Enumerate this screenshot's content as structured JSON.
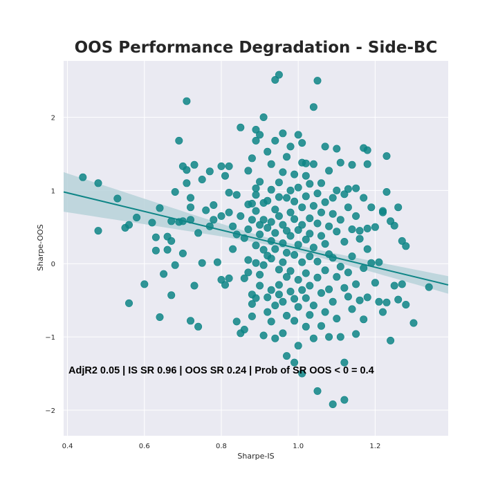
{
  "chart_data": {
    "type": "scatter",
    "title": "OOS Performance Degradation - Side-BC",
    "xlabel": "Sharpe-IS",
    "ylabel": "Sharpe-OOS",
    "xlim": [
      0.39,
      1.39
    ],
    "ylim": [
      -2.35,
      2.77
    ],
    "xticks": [
      0.4,
      0.6,
      0.8,
      1.0,
      1.2
    ],
    "xtick_labels": [
      "0.4",
      "0.6",
      "0.8",
      "1.0",
      "1.2"
    ],
    "yticks": [
      -2,
      -1,
      0,
      1,
      2
    ],
    "ytick_labels": [
      "−2",
      "−1",
      "0",
      "1",
      "2"
    ],
    "grid": true,
    "annotation": "AdjR2 0.05 | IS SR 0.96 | OOS SR 0.24 | Prob of SR OOS < 0 = 0.4",
    "colors": {
      "point": "#0e8586",
      "line": "#0e8586",
      "band": "#b7d2d9",
      "background": "#eaeaf2",
      "grid": "#ffffff"
    },
    "regression": {
      "x": [
        0.39,
        1.39
      ],
      "y": [
        0.98,
        -0.29
      ],
      "band_halfwidth": [
        0.27,
        0.12
      ]
    },
    "points": [
      [
        0.44,
        1.18
      ],
      [
        0.48,
        1.1
      ],
      [
        0.48,
        0.45
      ],
      [
        0.53,
        0.89
      ],
      [
        0.55,
        0.49
      ],
      [
        0.56,
        0.53
      ],
      [
        0.56,
        -0.54
      ],
      [
        0.58,
        0.63
      ],
      [
        0.6,
        -0.28
      ],
      [
        0.62,
        0.56
      ],
      [
        0.63,
        0.36
      ],
      [
        0.63,
        0.18
      ],
      [
        0.64,
        0.76
      ],
      [
        0.64,
        -0.73
      ],
      [
        0.65,
        -0.14
      ],
      [
        0.66,
        0.37
      ],
      [
        0.66,
        0.19
      ],
      [
        0.67,
        0.58
      ],
      [
        0.67,
        0.31
      ],
      [
        0.67,
        -0.43
      ],
      [
        0.68,
        0.98
      ],
      [
        0.68,
        -0.02
      ],
      [
        0.69,
        1.68
      ],
      [
        0.69,
        0.57
      ],
      [
        0.7,
        0.14
      ],
      [
        0.7,
        0.58
      ],
      [
        0.7,
        1.33
      ],
      [
        0.71,
        1.1
      ],
      [
        0.71,
        2.22
      ],
      [
        0.71,
        1.28
      ],
      [
        0.72,
        0.6
      ],
      [
        0.72,
        0.9
      ],
      [
        0.72,
        0.77
      ],
      [
        0.72,
        -0.78
      ],
      [
        0.73,
        1.35
      ],
      [
        0.73,
        -0.3
      ],
      [
        0.74,
        -0.86
      ],
      [
        0.74,
        0.42
      ],
      [
        0.75,
        0.01
      ],
      [
        0.75,
        1.15
      ],
      [
        0.76,
        0.73
      ],
      [
        0.77,
        0.51
      ],
      [
        0.77,
        1.26
      ],
      [
        0.78,
        0.6
      ],
      [
        0.78,
        0.8
      ],
      [
        0.79,
        0.02
      ],
      [
        0.8,
        -0.22
      ],
      [
        0.8,
        0.65
      ],
      [
        0.8,
        1.33
      ],
      [
        0.81,
        1.2
      ],
      [
        0.81,
        -0.29
      ],
      [
        0.82,
        1.33
      ],
      [
        0.82,
        0.7
      ],
      [
        0.82,
        0.97
      ],
      [
        0.82,
        -0.2
      ],
      [
        0.83,
        0.51
      ],
      [
        0.83,
        0.2
      ],
      [
        0.84,
        0.94
      ],
      [
        0.84,
        -0.79
      ],
      [
        0.84,
        0.4
      ],
      [
        0.85,
        -0.95
      ],
      [
        0.85,
        0.65
      ],
      [
        0.85,
        1.86
      ],
      [
        0.86,
        -0.2
      ],
      [
        0.86,
        -0.9
      ],
      [
        0.86,
        0.35
      ],
      [
        0.87,
        0.81
      ],
      [
        0.87,
        0.47
      ],
      [
        0.87,
        -0.12
      ],
      [
        0.87,
        1.27
      ],
      [
        0.87,
        0.05
      ],
      [
        0.88,
        1.44
      ],
      [
        0.88,
        0.6
      ],
      [
        0.88,
        -0.42
      ],
      [
        0.88,
        -0.55
      ],
      [
        0.88,
        -0.72
      ],
      [
        0.88,
        0.82
      ],
      [
        0.89,
        0.01
      ],
      [
        0.89,
        1.83
      ],
      [
        0.89,
        1.68
      ],
      [
        0.89,
        0.94
      ],
      [
        0.89,
        0.25
      ],
      [
        0.89,
        1.03
      ],
      [
        0.89,
        -0.47
      ],
      [
        0.89,
        0.72
      ],
      [
        0.9,
        1.76
      ],
      [
        0.9,
        -0.3
      ],
      [
        0.9,
        0.53
      ],
      [
        0.9,
        0.4
      ],
      [
        0.9,
        -0.15
      ],
      [
        0.9,
        1.12
      ],
      [
        0.91,
        0.83
      ],
      [
        0.91,
        2.0
      ],
      [
        0.91,
        -0.02
      ],
      [
        0.91,
        -0.98
      ],
      [
        0.91,
        0.19
      ],
      [
        0.91,
        0.6
      ],
      [
        0.92,
        0.11
      ],
      [
        0.92,
        1.53
      ],
      [
        0.92,
        -0.66
      ],
      [
        0.92,
        0.49
      ],
      [
        0.92,
        -0.46
      ],
      [
        0.92,
        0.86
      ],
      [
        0.93,
        1.36
      ],
      [
        0.93,
        0.31
      ],
      [
        0.93,
        -0.36
      ],
      [
        0.93,
        0.57
      ],
      [
        0.93,
        -0.79
      ],
      [
        0.93,
        0.07
      ],
      [
        0.93,
        1.01
      ],
      [
        0.94,
        2.51
      ],
      [
        0.94,
        1.68
      ],
      [
        0.94,
        -0.57
      ],
      [
        0.94,
        0.42
      ],
      [
        0.94,
        0.74
      ],
      [
        0.94,
        -1.02
      ],
      [
        0.94,
        0.2
      ],
      [
        0.95,
        2.58
      ],
      [
        0.95,
        -0.08
      ],
      [
        0.95,
        1.11
      ],
      [
        0.95,
        0.91
      ],
      [
        0.95,
        -0.29
      ],
      [
        0.95,
        0.65
      ],
      [
        0.95,
        -0.42
      ],
      [
        0.96,
        1.78
      ],
      [
        0.96,
        0.53
      ],
      [
        0.96,
        0.28
      ],
      [
        0.96,
        -0.52
      ],
      [
        0.96,
        -0.95
      ],
      [
        0.96,
        1.25
      ],
      [
        0.96,
        0.02
      ],
      [
        0.97,
        0.45
      ],
      [
        0.97,
        1.46
      ],
      [
        0.97,
        -0.71
      ],
      [
        0.97,
        0.9
      ],
      [
        0.97,
        0.15
      ],
      [
        0.97,
        -0.18
      ],
      [
        0.97,
        -1.26
      ],
      [
        0.98,
        0.7
      ],
      [
        0.98,
        1.6
      ],
      [
        0.98,
        -0.1
      ],
      [
        0.98,
        0.38
      ],
      [
        0.98,
        -0.38
      ],
      [
        0.98,
        1.0
      ],
      [
        0.99,
        -0.48
      ],
      [
        0.99,
        0.12
      ],
      [
        0.99,
        1.22
      ],
      [
        0.99,
        0.61
      ],
      [
        0.99,
        -0.78
      ],
      [
        0.99,
        -1.35
      ],
      [
        0.99,
        0.85
      ],
      [
        1.0,
        1.76
      ],
      [
        1.0,
        0.26
      ],
      [
        1.0,
        -0.22
      ],
      [
        1.0,
        1.04
      ],
      [
        1.0,
        -0.59
      ],
      [
        1.0,
        0.46
      ],
      [
        1.0,
        -1.12
      ],
      [
        1.01,
        1.38
      ],
      [
        1.01,
        0.02
      ],
      [
        1.01,
        -1.5
      ],
      [
        1.01,
        0.77
      ],
      [
        1.01,
        -0.36
      ],
      [
        1.01,
        1.65
      ],
      [
        1.01,
        0.53
      ],
      [
        1.02,
        -0.86
      ],
      [
        1.02,
        0.33
      ],
      [
        1.02,
        -0.13
      ],
      [
        1.02,
        1.2
      ],
      [
        1.02,
        0.92
      ],
      [
        1.02,
        -0.47
      ],
      [
        1.02,
        1.37
      ],
      [
        1.03,
        0.62
      ],
      [
        1.03,
        -0.7
      ],
      [
        1.03,
        0.1
      ],
      [
        1.03,
        1.09
      ],
      [
        1.03,
        -0.3
      ],
      [
        1.03,
        0.41
      ],
      [
        1.04,
        2.14
      ],
      [
        1.04,
        -1.02
      ],
      [
        1.04,
        0.79
      ],
      [
        1.04,
        0.22
      ],
      [
        1.04,
        -0.57
      ],
      [
        1.04,
        1.36
      ],
      [
        1.05,
        2.5
      ],
      [
        1.05,
        0.55
      ],
      [
        1.05,
        -0.19
      ],
      [
        1.05,
        0.96
      ],
      [
        1.05,
        -1.74
      ],
      [
        1.05,
        0.03
      ],
      [
        1.06,
        -0.4
      ],
      [
        1.06,
        0.7
      ],
      [
        1.06,
        0.38
      ],
      [
        1.06,
        1.1
      ],
      [
        1.06,
        -0.85
      ],
      [
        1.07,
        -0.09
      ],
      [
        1.07,
        0.84
      ],
      [
        1.07,
        0.27
      ],
      [
        1.07,
        -0.66
      ],
      [
        1.07,
        1.6
      ],
      [
        1.08,
        0.51
      ],
      [
        1.08,
        -0.35
      ],
      [
        1.08,
        0.13
      ],
      [
        1.08,
        1.27
      ],
      [
        1.08,
        -1.0
      ],
      [
        1.09,
        -1.92
      ],
      [
        1.09,
        0.68
      ],
      [
        1.09,
        -0.52
      ],
      [
        1.09,
        0.9
      ],
      [
        1.09,
        0.08
      ],
      [
        1.1,
        -0.18
      ],
      [
        1.1,
        1.57
      ],
      [
        1.1,
        0.44
      ],
      [
        1.1,
        -0.75
      ],
      [
        1.1,
        1.0
      ],
      [
        1.11,
        1.38
      ],
      [
        1.11,
        -0.04
      ],
      [
        1.11,
        0.6
      ],
      [
        1.11,
        -1.0
      ],
      [
        1.12,
        -1.86
      ],
      [
        1.12,
        0.95
      ],
      [
        1.12,
        -0.33
      ],
      [
        1.12,
        -1.35
      ],
      [
        1.12,
        0.3
      ],
      [
        1.13,
        -0.45
      ],
      [
        1.13,
        0.77
      ],
      [
        1.13,
        -0.12
      ],
      [
        1.13,
        1.02
      ],
      [
        1.14,
        1.35
      ],
      [
        1.14,
        -0.62
      ],
      [
        1.14,
        0.47
      ],
      [
        1.14,
        0.1
      ],
      [
        1.15,
        -0.28
      ],
      [
        1.15,
        0.65
      ],
      [
        1.15,
        1.03
      ],
      [
        1.15,
        -0.96
      ],
      [
        1.16,
        0.45
      ],
      [
        1.16,
        -0.5
      ],
      [
        1.16,
        0.34
      ],
      [
        1.17,
        1.58
      ],
      [
        1.17,
        -0.06
      ],
      [
        1.17,
        0.9
      ],
      [
        1.17,
        -0.76
      ],
      [
        1.18,
        0.48
      ],
      [
        1.18,
        -0.46
      ],
      [
        1.18,
        0.2
      ],
      [
        1.18,
        1.55
      ],
      [
        1.18,
        1.36
      ],
      [
        1.19,
        0.01
      ],
      [
        1.19,
        0.77
      ],
      [
        1.2,
        -0.26
      ],
      [
        1.2,
        0.5
      ],
      [
        1.21,
        -0.52
      ],
      [
        1.21,
        0.02
      ],
      [
        1.22,
        0.72
      ],
      [
        1.22,
        -0.66
      ],
      [
        1.22,
        0.7
      ],
      [
        1.23,
        0.98
      ],
      [
        1.23,
        -0.53
      ],
      [
        1.23,
        1.47
      ],
      [
        1.24,
        0.58
      ],
      [
        1.24,
        -1.05
      ],
      [
        1.25,
        0.52
      ],
      [
        1.25,
        -0.3
      ],
      [
        1.26,
        -0.49
      ],
      [
        1.26,
        0.77
      ],
      [
        1.27,
        0.31
      ],
      [
        1.27,
        -0.28
      ],
      [
        1.28,
        0.24
      ],
      [
        1.28,
        -0.56
      ],
      [
        1.3,
        -0.81
      ],
      [
        1.34,
        -0.32
      ]
    ]
  }
}
